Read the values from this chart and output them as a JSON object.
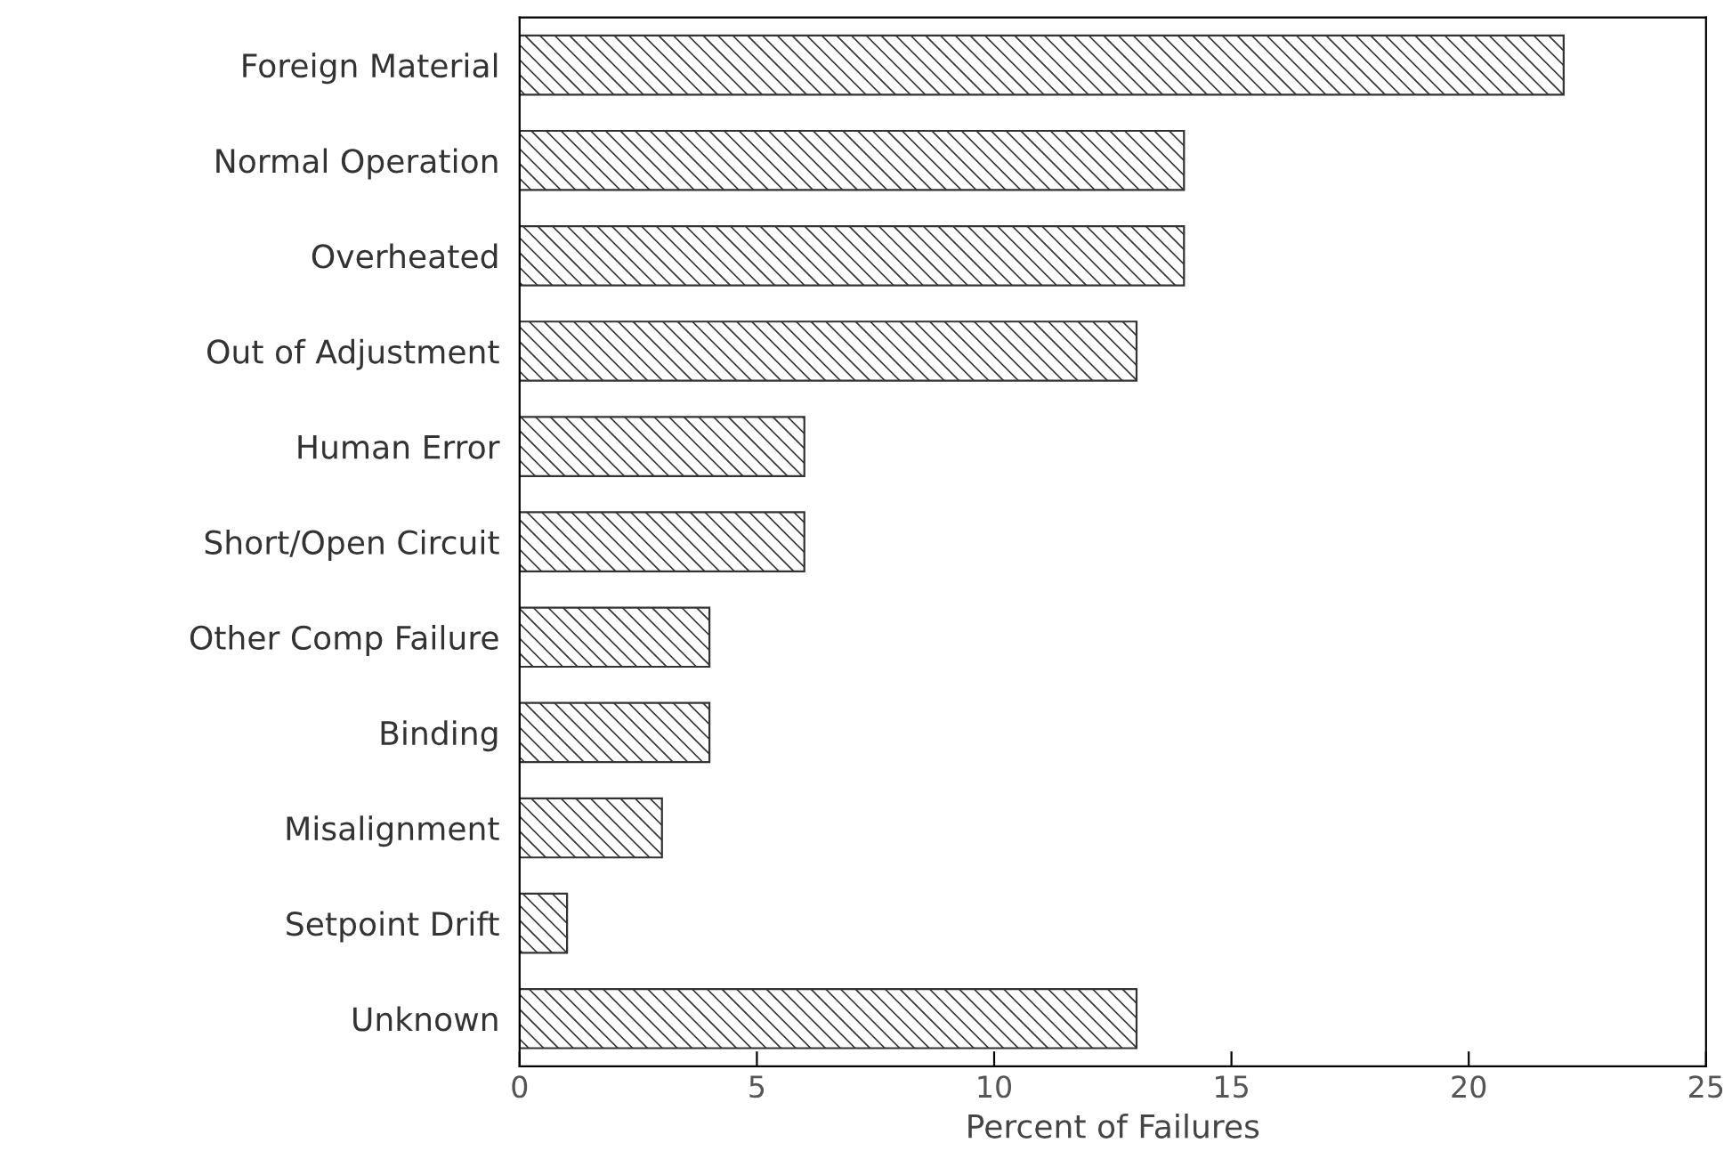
{
  "chart_data": {
    "type": "bar",
    "orientation": "horizontal",
    "xlabel": "Percent of Failures",
    "categories": [
      "Foreign Material",
      "Normal Operation",
      "Overheated",
      "Out of Adjustment",
      "Human Error",
      "Short/Open Circuit",
      "Other Comp Failure",
      "Binding",
      "Misalignment",
      "Setpoint Drift",
      "Unknown"
    ],
    "values": [
      22,
      14,
      14,
      13,
      6,
      6,
      4,
      4,
      3,
      1,
      13
    ],
    "color": "#333333",
    "xlim": [
      0,
      25
    ],
    "xticks": [
      0,
      5,
      10,
      15,
      20,
      25
    ],
    "grid": false,
    "legend": false
  }
}
